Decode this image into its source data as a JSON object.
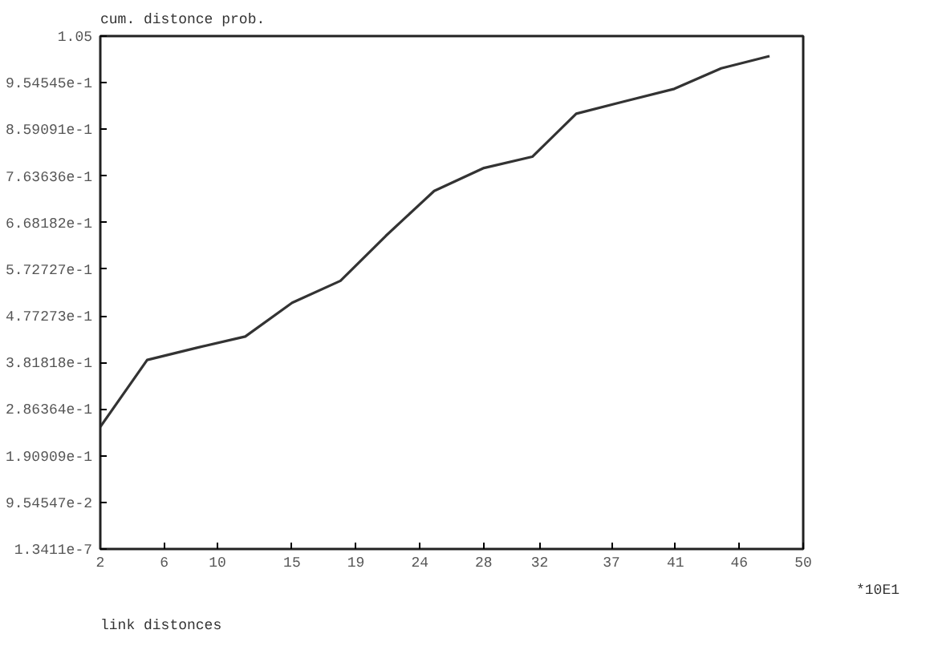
{
  "chart_data": {
    "type": "line",
    "ylabel": "cum. distonce prob.",
    "xlabel": "link distonces",
    "annotations": [
      "*10E1"
    ],
    "x": [
      2,
      5.2,
      8.6,
      11.9,
      15.1,
      18.4,
      21.5,
      24.8,
      28.2,
      31.5,
      34.5,
      37.9,
      41.2,
      44.4,
      47.7
    ],
    "series": [
      {
        "color": "#333333",
        "values": [
          0.25,
          0.387,
          0.412,
          0.435,
          0.504,
          0.549,
          0.641,
          0.733,
          0.78,
          0.803,
          0.891,
          0.917,
          0.942,
          0.984,
          1.009
        ]
      }
    ],
    "xlim": [
      2,
      50
    ],
    "ylim": [
      0,
      1.05
    ],
    "xticks": [
      2,
      {
        "value": 6.3636,
        "label": "6"
      },
      10,
      {
        "value": 15.0909,
        "label": "15"
      },
      {
        "value": 19.4545,
        "label": "19"
      },
      {
        "value": 23.8182,
        "label": "24"
      },
      {
        "value": 28.1818,
        "label": "28"
      },
      32,
      {
        "value": 36.9091,
        "label": "37"
      },
      {
        "value": 41.2727,
        "label": "41"
      },
      {
        "value": 45.6364,
        "label": "46"
      },
      50
    ],
    "yticks": [
      {
        "value": 1.3411e-07,
        "label": "1.3411e-7"
      },
      {
        "value": 0.0954547,
        "label": "9.54547e-2"
      },
      {
        "value": 0.190909,
        "label": "1.90909e-1"
      },
      {
        "value": 0.286364,
        "label": "2.86364e-1"
      },
      {
        "value": 0.381818,
        "label": "3.81818e-1"
      },
      {
        "value": 0.477273,
        "label": "4.77273e-1"
      },
      {
        "value": 0.572727,
        "label": "5.72727e-1"
      },
      {
        "value": 0.668182,
        "label": "6.68182e-1"
      },
      {
        "value": 0.763636,
        "label": "7.63636e-1"
      },
      {
        "value": 0.859091,
        "label": "8.59091e-1"
      },
      {
        "value": 0.954545,
        "label": "9.54545e-1"
      },
      1.05
    ],
    "grid": false,
    "line_style": "solid"
  }
}
